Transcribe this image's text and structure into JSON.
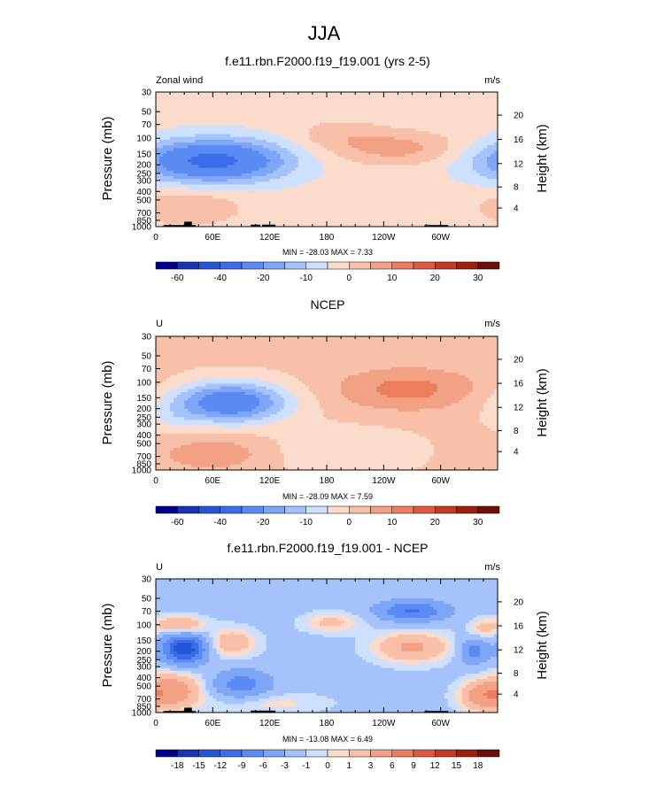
{
  "figure": {
    "title": "JJA"
  },
  "colors": {
    "panel_levels": [
      "#00008b",
      "#1a33b0",
      "#2654d6",
      "#3b6de8",
      "#5a8af2",
      "#7ea6f7",
      "#a6c2fa",
      "#cde0fd",
      "#fbdccc",
      "#f8c0a8",
      "#f3a184",
      "#ec7e5f",
      "#de5a3f",
      "#c23b25",
      "#9c1f12",
      "#6e0e08"
    ],
    "diff_levels": [
      "#00008b",
      "#1a33b0",
      "#2654d6",
      "#3b6de8",
      "#5a8af2",
      "#7ea6f7",
      "#a6c2fa",
      "#cde0fd",
      "#fbdccc",
      "#f8c0a8",
      "#f3a184",
      "#ec7e5f",
      "#de5a3f",
      "#c23b25",
      "#9c1f12",
      "#6e0e08"
    ],
    "topography": "#000000"
  },
  "chart_data": [
    {
      "type": "heatmap",
      "title": "f.e11.rbn.F2000.f19_f19.001 (yrs 2-5)",
      "subtitle_left": "Zonal wind",
      "subtitle_right": "m/s",
      "variable": "Zonal wind",
      "units": "m/s",
      "xlabel": "",
      "ylabel": "Pressure (mb)",
      "ylabel_right": "Height (km)",
      "x_ticks": [
        "0",
        "60E",
        "120E",
        "180",
        "120W",
        "60W"
      ],
      "x_tick_lons": [
        0,
        60,
        120,
        180,
        240,
        300
      ],
      "xlim": [
        0,
        360
      ],
      "y_ticks": [
        "30",
        "50",
        "70",
        "100",
        "150",
        "200",
        "250",
        "300",
        "400",
        "500",
        "700",
        "850",
        "1000"
      ],
      "y_tick_values": [
        30,
        50,
        70,
        100,
        150,
        200,
        250,
        300,
        400,
        500,
        700,
        850,
        1000
      ],
      "ylim": [
        1000,
        30
      ],
      "height_ticks": [
        "4",
        "8",
        "12",
        "16",
        "20"
      ],
      "height_tick_values": [
        4,
        8,
        12,
        16,
        20
      ],
      "stats": "MIN = -28.03   MAX =   7.33",
      "min": -28.03,
      "max": 7.33,
      "colorbar_labels": [
        "-60",
        "-40",
        "-20",
        "-10",
        "0",
        "10",
        "20",
        "30"
      ],
      "colorbar_boundaries": [
        -70,
        -60,
        -50,
        -40,
        -30,
        -20,
        -15,
        -10,
        -5,
        0,
        5,
        10,
        15,
        20,
        25,
        30,
        35
      ],
      "background_value": -3,
      "features": [
        {
          "lon": 60,
          "p": 180,
          "rlon": 78,
          "rp": 1.75,
          "amp": -30
        },
        {
          "lon": 255,
          "p": 130,
          "rlon": 70,
          "rp": 1.55,
          "amp": 10
        },
        {
          "lon": 35,
          "p": 600,
          "rlon": 55,
          "rp": 1.6,
          "amp": 8
        },
        {
          "lon": 190,
          "p": 90,
          "rlon": 50,
          "rp": 1.5,
          "amp": 5
        }
      ],
      "topography": [
        {
          "lon0": 8,
          "lon1": 42,
          "p": 960
        },
        {
          "lon0": 30,
          "lon1": 38,
          "p": 880
        },
        {
          "lon0": 100,
          "lon1": 110,
          "p": 950
        },
        {
          "lon0": 112,
          "lon1": 126,
          "p": 950
        },
        {
          "lon0": 283,
          "lon1": 308,
          "p": 960
        }
      ]
    },
    {
      "type": "heatmap",
      "title": "NCEP",
      "subtitle_left": "U",
      "subtitle_right": "m/s",
      "variable": "U",
      "units": "m/s",
      "xlabel": "",
      "ylabel": "Pressure (mb)",
      "ylabel_right": "Height (km)",
      "x_ticks": [
        "0",
        "60E",
        "120E",
        "180",
        "120W",
        "60W"
      ],
      "x_tick_lons": [
        0,
        60,
        120,
        180,
        240,
        300
      ],
      "xlim": [
        0,
        360
      ],
      "y_ticks": [
        "30",
        "50",
        "70",
        "100",
        "150",
        "200",
        "250",
        "300",
        "400",
        "500",
        "700",
        "850",
        "1000"
      ],
      "y_tick_values": [
        30,
        50,
        70,
        100,
        150,
        200,
        250,
        300,
        400,
        500,
        700,
        850,
        1000
      ],
      "ylim": [
        1000,
        30
      ],
      "height_ticks": [
        "4",
        "8",
        "12",
        "16",
        "20"
      ],
      "height_tick_values": [
        4,
        8,
        12,
        16,
        20
      ],
      "stats": "MIN = -28.09   MAX =   7.59",
      "min": -28.09,
      "max": 7.59,
      "colorbar_labels": [
        "-60",
        "-40",
        "-20",
        "-10",
        "0",
        "10",
        "20",
        "30"
      ],
      "colorbar_boundaries": [
        -70,
        -60,
        -50,
        -40,
        -30,
        -20,
        -15,
        -10,
        -5,
        0,
        5,
        10,
        15,
        20,
        25,
        30,
        35
      ],
      "background_value": 1,
      "features": [
        {
          "lon": 78,
          "p": 170,
          "rlon": 60,
          "rp": 1.7,
          "amp": -28
        },
        {
          "lon": 265,
          "p": 120,
          "rlon": 75,
          "rp": 1.75,
          "amp": 11
        },
        {
          "lon": 60,
          "p": 650,
          "rlon": 55,
          "rp": 1.55,
          "amp": 8
        },
        {
          "lon": 200,
          "p": 600,
          "rlon": 70,
          "rp": 1.8,
          "amp": -6
        },
        {
          "lon": 20,
          "p": 250,
          "rlon": 25,
          "rp": 1.6,
          "amp": -4
        }
      ],
      "topography": []
    },
    {
      "type": "heatmap",
      "title": "f.e11.rbn.F2000.f19_f19.001 - NCEP",
      "subtitle_left": "U",
      "subtitle_right": "m/s",
      "variable": "U",
      "units": "m/s",
      "xlabel": "",
      "ylabel": "Pressure (mb)",
      "ylabel_right": "Height (km)",
      "x_ticks": [
        "0",
        "60E",
        "120E",
        "180",
        "120W",
        "60W"
      ],
      "x_tick_lons": [
        0,
        60,
        120,
        180,
        240,
        300
      ],
      "xlim": [
        0,
        360
      ],
      "y_ticks": [
        "30",
        "50",
        "70",
        "100",
        "150",
        "200",
        "250",
        "300",
        "400",
        "500",
        "700",
        "850",
        "1000"
      ],
      "y_tick_values": [
        30,
        50,
        70,
        100,
        150,
        200,
        250,
        300,
        400,
        500,
        700,
        850,
        1000
      ],
      "ylim": [
        1000,
        30
      ],
      "height_ticks": [
        "4",
        "8",
        "12",
        "16",
        "20"
      ],
      "height_tick_values": [
        4,
        8,
        12,
        16,
        20
      ],
      "stats": "MIN = -13.08   MAX =   6.49",
      "min": -13.08,
      "max": 6.49,
      "colorbar_labels": [
        "-18",
        "-15",
        "-12",
        "-9",
        "-6",
        "-3",
        "-1",
        "0",
        "1",
        "3",
        "6",
        "9",
        "12",
        "15",
        "18"
      ],
      "colorbar_boundaries": [
        -21,
        -18,
        -15,
        -12,
        -9,
        -6,
        -3,
        -1,
        0,
        1,
        3,
        6,
        9,
        12,
        15,
        18,
        21
      ],
      "background_value": -1.5,
      "features": [
        {
          "lon": 30,
          "p": 190,
          "rlon": 22,
          "rp": 1.45,
          "amp": -13
        },
        {
          "lon": 80,
          "p": 160,
          "rlon": 26,
          "rp": 1.45,
          "amp": 4
        },
        {
          "lon": 25,
          "p": 100,
          "rlon": 25,
          "rp": 1.25,
          "amp": 5
        },
        {
          "lon": 20,
          "p": 560,
          "rlon": 30,
          "rp": 1.6,
          "amp": 6
        },
        {
          "lon": 90,
          "p": 480,
          "rlon": 30,
          "rp": 1.45,
          "amp": -6
        },
        {
          "lon": 270,
          "p": 70,
          "rlon": 35,
          "rp": 1.3,
          "amp": -8
        },
        {
          "lon": 270,
          "p": 180,
          "rlon": 40,
          "rp": 1.5,
          "amp": 5
        },
        {
          "lon": 185,
          "p": 95,
          "rlon": 30,
          "rp": 1.3,
          "amp": 3
        },
        {
          "lon": 335,
          "p": 200,
          "rlon": 15,
          "rp": 1.4,
          "amp": -6
        },
        {
          "lon": 345,
          "p": 650,
          "rlon": 25,
          "rp": 1.5,
          "amp": 6
        },
        {
          "lon": 345,
          "p": 110,
          "rlon": 15,
          "rp": 1.3,
          "amp": 3
        },
        {
          "lon": 120,
          "p": 780,
          "rlon": 60,
          "rp": 1.3,
          "amp": 2
        }
      ],
      "topography": [
        {
          "lon0": 8,
          "lon1": 42,
          "p": 960
        },
        {
          "lon0": 30,
          "lon1": 38,
          "p": 880
        },
        {
          "lon0": 100,
          "lon1": 126,
          "p": 950
        },
        {
          "lon0": 283,
          "lon1": 308,
          "p": 960
        }
      ]
    }
  ]
}
